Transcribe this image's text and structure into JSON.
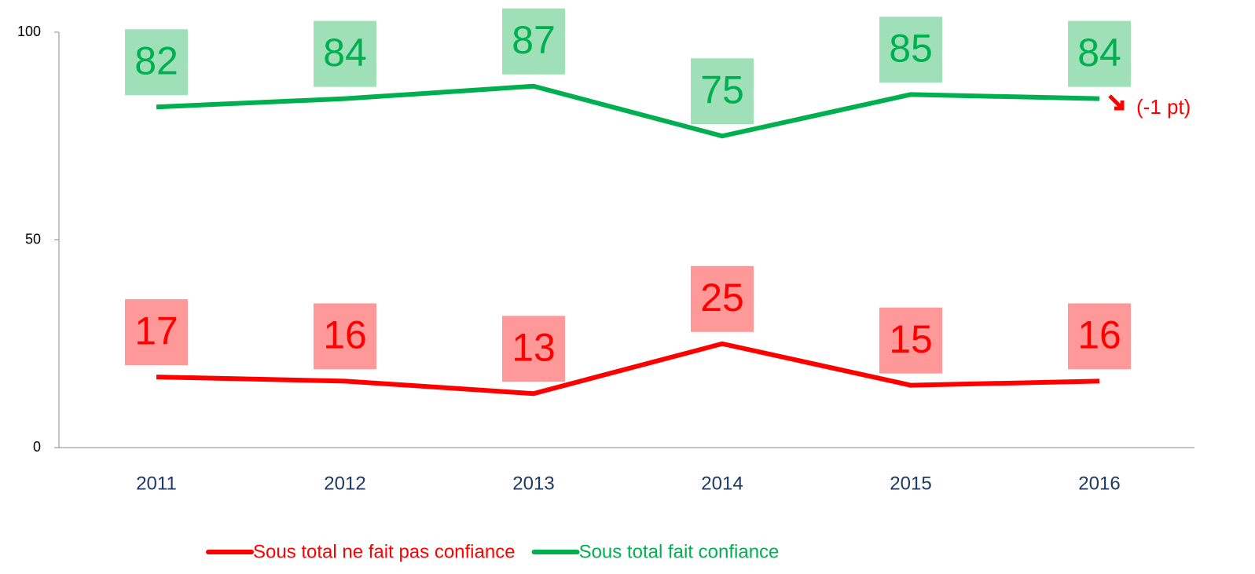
{
  "chart_data": {
    "type": "line",
    "categories": [
      "2011",
      "2012",
      "2013",
      "2014",
      "2015",
      "2016"
    ],
    "series": [
      {
        "name": "Sous total ne fait pas confiance",
        "color": "#ff0000",
        "label_bg": "#ff9999",
        "values": [
          17,
          16,
          13,
          25,
          15,
          16
        ]
      },
      {
        "name": "Sous total fait confiance",
        "color": "#00b050",
        "label_bg": "#9fe0b8",
        "values": [
          82,
          84,
          87,
          75,
          85,
          84
        ]
      }
    ],
    "ylim": [
      0,
      100
    ],
    "yticks": [
      0,
      50,
      100
    ],
    "annotation": "(-1 pt)",
    "legend": "bottom"
  }
}
